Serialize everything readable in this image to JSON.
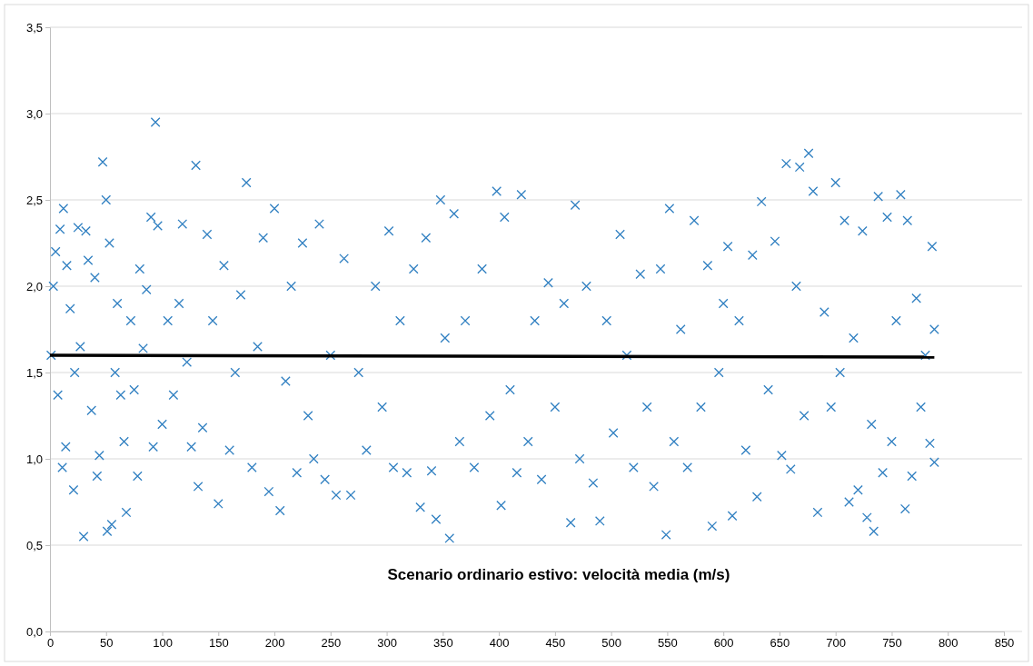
{
  "chart_data": {
    "type": "scatter",
    "title": "Scenario ordinario estivo: velocità media (m/s)",
    "xlim": [
      0,
      850
    ],
    "xticks": [
      0,
      50,
      100,
      150,
      200,
      250,
      300,
      350,
      400,
      450,
      500,
      550,
      600,
      650,
      700,
      750,
      800,
      850
    ],
    "ylim": [
      0,
      3.5
    ],
    "yticks": [
      {
        "value": 0,
        "label": "0,0"
      },
      {
        "value": 0.5,
        "label": "0,5"
      },
      {
        "value": 1,
        "label": "1,0"
      },
      {
        "value": 1.5,
        "label": "1,5"
      },
      {
        "value": 2,
        "label": "2,0"
      },
      {
        "value": 2.5,
        "label": "2,5"
      },
      {
        "value": 3,
        "label": "3,0"
      },
      {
        "value": 3.5,
        "label": "3,5"
      }
    ],
    "grid": "y",
    "series": [
      {
        "color": "#2f7fc1",
        "marker": "cross",
        "x": [
          1,
          3,
          5,
          7,
          9,
          11,
          12,
          14,
          15,
          18,
          21,
          22,
          25,
          27,
          30,
          32,
          34,
          37,
          40,
          42,
          44,
          47,
          50,
          51,
          53,
          55,
          58,
          60,
          63,
          66,
          68,
          72,
          75,
          78,
          80,
          83,
          86,
          90,
          92,
          94,
          96,
          100,
          105,
          110,
          115,
          118,
          122,
          126,
          130,
          132,
          136,
          140,
          145,
          150,
          155,
          160,
          165,
          170,
          175,
          180,
          185,
          190,
          195,
          200,
          205,
          210,
          215,
          220,
          225,
          230,
          235,
          240,
          245,
          250,
          255,
          262,
          268,
          275,
          282,
          290,
          296,
          302,
          306,
          312,
          318,
          324,
          330,
          335,
          340,
          344,
          348,
          352,
          356,
          360,
          365,
          370,
          378,
          385,
          392,
          398,
          402,
          405,
          410,
          416,
          420,
          426,
          432,
          438,
          444,
          450,
          458,
          464,
          468,
          472,
          478,
          484,
          490,
          496,
          502,
          508,
          514,
          520,
          526,
          532,
          538,
          544,
          549,
          552,
          556,
          562,
          568,
          574,
          580,
          586,
          590,
          596,
          600,
          604,
          608,
          614,
          620,
          626,
          630,
          634,
          640,
          646,
          652,
          656,
          660,
          665,
          668,
          672,
          676,
          680,
          684,
          690,
          696,
          700,
          704,
          708,
          712,
          716,
          720,
          724,
          728,
          732,
          734,
          738,
          742,
          746,
          750,
          754,
          758,
          762,
          764,
          768,
          772,
          776,
          780,
          784,
          786,
          788,
          788
        ],
        "values": [
          1.6,
          2.0,
          2.2,
          1.37,
          2.33,
          0.95,
          2.45,
          1.07,
          2.12,
          1.87,
          0.82,
          1.5,
          2.34,
          1.65,
          0.55,
          2.32,
          2.15,
          1.28,
          2.05,
          0.9,
          1.02,
          2.72,
          2.5,
          0.58,
          2.25,
          0.62,
          1.5,
          1.9,
          1.37,
          1.1,
          0.69,
          1.8,
          1.4,
          0.9,
          2.1,
          1.64,
          1.98,
          2.4,
          1.07,
          2.95,
          2.35,
          1.2,
          1.8,
          1.37,
          1.9,
          2.36,
          1.56,
          1.07,
          2.7,
          0.84,
          1.18,
          2.3,
          1.8,
          0.74,
          2.12,
          1.05,
          1.5,
          1.95,
          2.6,
          0.95,
          1.65,
          2.28,
          0.81,
          2.45,
          0.7,
          1.45,
          2.0,
          0.92,
          2.25,
          1.25,
          1.0,
          2.36,
          0.88,
          1.6,
          0.79,
          2.16,
          0.79,
          1.5,
          1.05,
          2.0,
          1.3,
          2.32,
          0.95,
          1.8,
          0.92,
          2.1,
          0.72,
          2.28,
          0.93,
          0.65,
          2.5,
          1.7,
          0.54,
          2.42,
          1.1,
          1.8,
          0.95,
          2.1,
          1.25,
          2.55,
          0.73,
          2.4,
          1.4,
          0.92,
          2.53,
          1.1,
          1.8,
          0.88,
          2.02,
          1.3,
          1.9,
          0.63,
          2.47,
          1.0,
          2.0,
          0.86,
          0.64,
          1.8,
          1.15,
          2.3,
          1.6,
          0.95,
          2.07,
          1.3,
          0.84,
          2.1,
          0.56,
          2.45,
          1.1,
          1.75,
          0.95,
          2.38,
          1.3,
          2.12,
          0.61,
          1.5,
          1.9,
          2.23,
          0.67,
          1.8,
          1.05,
          2.18,
          0.78,
          2.49,
          1.4,
          2.26,
          1.02,
          2.71,
          0.94,
          2.0,
          2.69,
          1.25,
          2.77,
          2.55,
          0.69,
          1.85,
          1.3,
          2.6,
          1.5,
          2.38,
          0.75,
          1.7,
          0.82,
          2.32,
          0.66,
          1.2,
          0.58,
          2.52,
          0.92,
          2.4,
          1.1,
          1.8,
          2.53,
          0.71,
          2.38,
          0.9,
          1.93,
          1.3,
          1.6,
          1.09,
          2.23,
          0.98,
          1.75
        ]
      },
      {
        "type": "line",
        "color": "#000000",
        "line_style": "solid",
        "x": [
          0,
          788
        ],
        "values": [
          1.6,
          1.59
        ]
      }
    ]
  }
}
